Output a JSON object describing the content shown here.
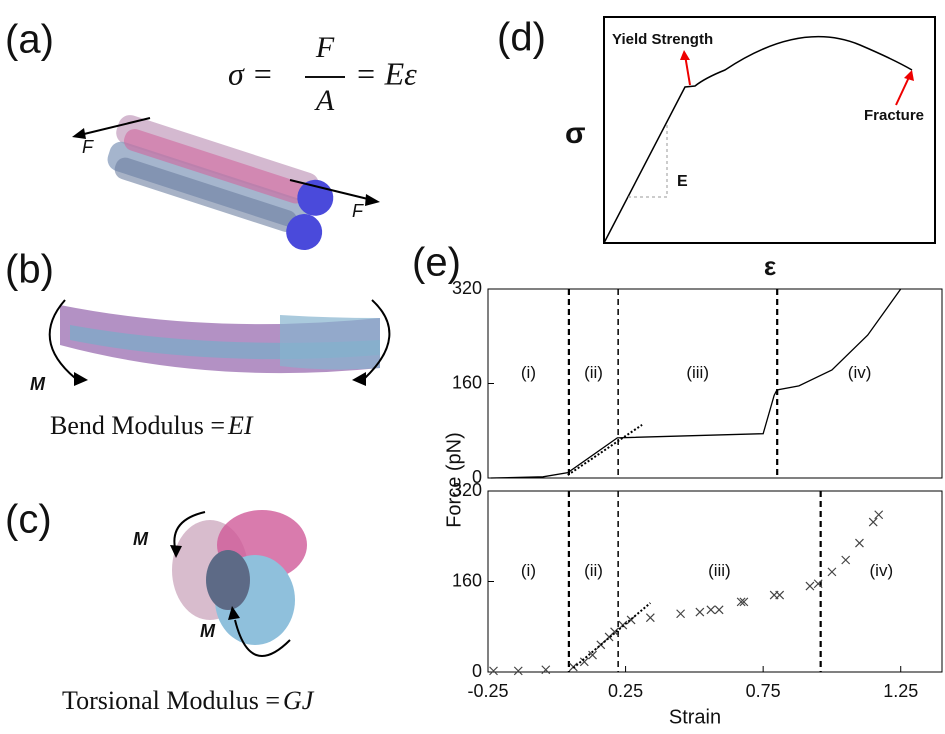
{
  "panels": {
    "a": {
      "label": "(a)",
      "formula": {
        "lhs": "σ =",
        "numerator": "F",
        "denominator": "A",
        "rhs": "= Eε"
      },
      "forces": [
        "F",
        "F"
      ]
    },
    "b": {
      "label": "(b)",
      "moment": "M",
      "caption_text": "Bend Modulus = ",
      "caption_symbol": "EI"
    },
    "c": {
      "label": "(c)",
      "moments": [
        "M",
        "M"
      ],
      "caption_text": "Torsional Modulus = ",
      "caption_symbol": "GJ"
    },
    "d": {
      "label": "(d)",
      "yield": "Yield Strength",
      "fracture": "Fracture",
      "y_label": "σ",
      "x_label": "ε",
      "slope_label": "E"
    },
    "e": {
      "label": "(e)"
    }
  },
  "chart_data": [
    {
      "type": "line",
      "xlim": [
        -0.25,
        1.4
      ],
      "ylim": [
        0,
        320
      ],
      "yticks": [
        0,
        160,
        320
      ],
      "color": "#000000",
      "dividers": [
        0.044,
        0.223,
        0.801
      ],
      "region_labels": [
        "(i)",
        "(ii)",
        "(iii)",
        "(iv)"
      ],
      "series": [
        {
          "color": "#000000",
          "style": "solid",
          "x": [
            -0.24,
            -0.05,
            0.04,
            0.22,
            0.75,
            0.79,
            0.8,
            0.88,
            1.0,
            1.13,
            1.25
          ],
          "values": [
            0,
            2,
            9,
            68,
            75,
            140,
            149,
            156,
            183,
            242,
            320
          ]
        },
        {
          "color": "#000000",
          "style": "dotted",
          "x": [
            0.04,
            0.31
          ],
          "values": [
            5,
            90
          ]
        }
      ]
    },
    {
      "type": "scatter",
      "xlim": [
        -0.25,
        1.4
      ],
      "ylim": [
        0,
        320
      ],
      "xticks": [
        -0.25,
        0.25,
        0.75,
        1.25
      ],
      "yticks": [
        0,
        160,
        320
      ],
      "x_label": "Strain",
      "y_label": "Force (pN)",
      "color": "#444444",
      "dividers": [
        0.044,
        0.223,
        0.959
      ],
      "region_labels": [
        "(i)",
        "(ii)",
        "(iii)",
        "(iv)"
      ],
      "series": [
        {
          "color": "#444444",
          "style": "marker",
          "x": [
            -0.23,
            -0.14,
            -0.04,
            0.06,
            0.1,
            0.13,
            0.16,
            0.19,
            0.21,
            0.24,
            0.27,
            0.34,
            0.45,
            0.52,
            0.56,
            0.59,
            0.67,
            0.68,
            0.79,
            0.81,
            0.92,
            0.95,
            1.0,
            1.05,
            1.1,
            1.15,
            1.17
          ],
          "values": [
            2,
            2,
            4,
            9,
            18,
            30,
            48,
            62,
            71,
            83,
            92,
            96,
            103,
            106,
            110,
            110,
            124,
            124,
            136,
            136,
            152,
            156,
            177,
            198,
            228,
            265,
            278
          ]
        },
        {
          "color": "#000000",
          "style": "dotted",
          "x": [
            0.06,
            0.34
          ],
          "values": [
            7,
            122
          ]
        }
      ]
    }
  ]
}
